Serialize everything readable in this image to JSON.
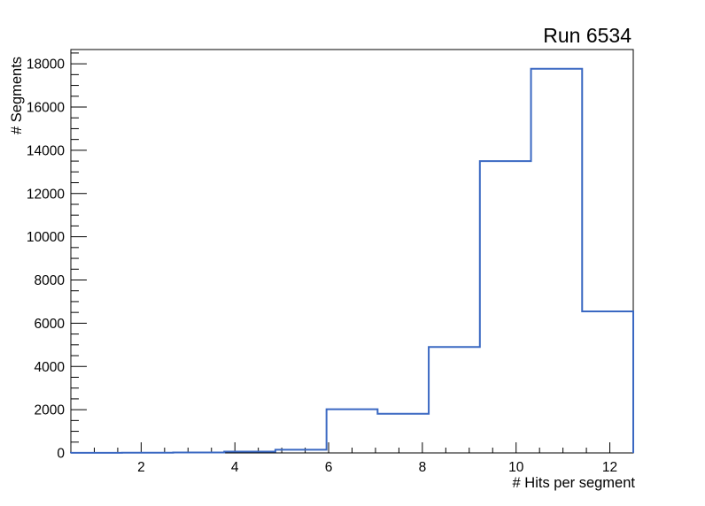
{
  "chart_data": {
    "type": "histogram",
    "title": "Run 6534",
    "xlabel": "# Hits per segment",
    "ylabel": "# Segments",
    "x_range": [
      0.5,
      12.5
    ],
    "y_range": [
      0,
      18660
    ],
    "bin_edges": [
      0.5,
      1.591,
      2.682,
      3.773,
      4.864,
      5.955,
      7.045,
      8.136,
      9.227,
      10.318,
      11.409,
      12.5
    ],
    "counts": [
      5,
      10,
      20,
      60,
      150,
      2020,
      1810,
      4900,
      13500,
      17770,
      6550
    ],
    "x_ticks": [
      {
        "v": 2,
        "label": "2"
      },
      {
        "v": 4,
        "label": "4"
      },
      {
        "v": 6,
        "label": "6"
      },
      {
        "v": 8,
        "label": "8"
      },
      {
        "v": 10,
        "label": "10"
      },
      {
        "v": 12,
        "label": "12"
      }
    ],
    "x_minor_tick_step": 0.5,
    "y_ticks": [
      {
        "v": 0,
        "label": "0"
      },
      {
        "v": 2000,
        "label": "2000"
      },
      {
        "v": 4000,
        "label": "4000"
      },
      {
        "v": 6000,
        "label": "6000"
      },
      {
        "v": 8000,
        "label": "8000"
      },
      {
        "v": 10000,
        "label": "10000"
      },
      {
        "v": 12000,
        "label": "12000"
      },
      {
        "v": 14000,
        "label": "14000"
      },
      {
        "v": 16000,
        "label": "16000"
      },
      {
        "v": 18000,
        "label": "18000"
      }
    ],
    "y_major_tick_step": 2000,
    "y_minor_tick_step": 500,
    "grid": false,
    "legend_position": "none",
    "line_color": "#3a68c2",
    "frame_color": "#000000",
    "background_color": "#ffffff"
  }
}
